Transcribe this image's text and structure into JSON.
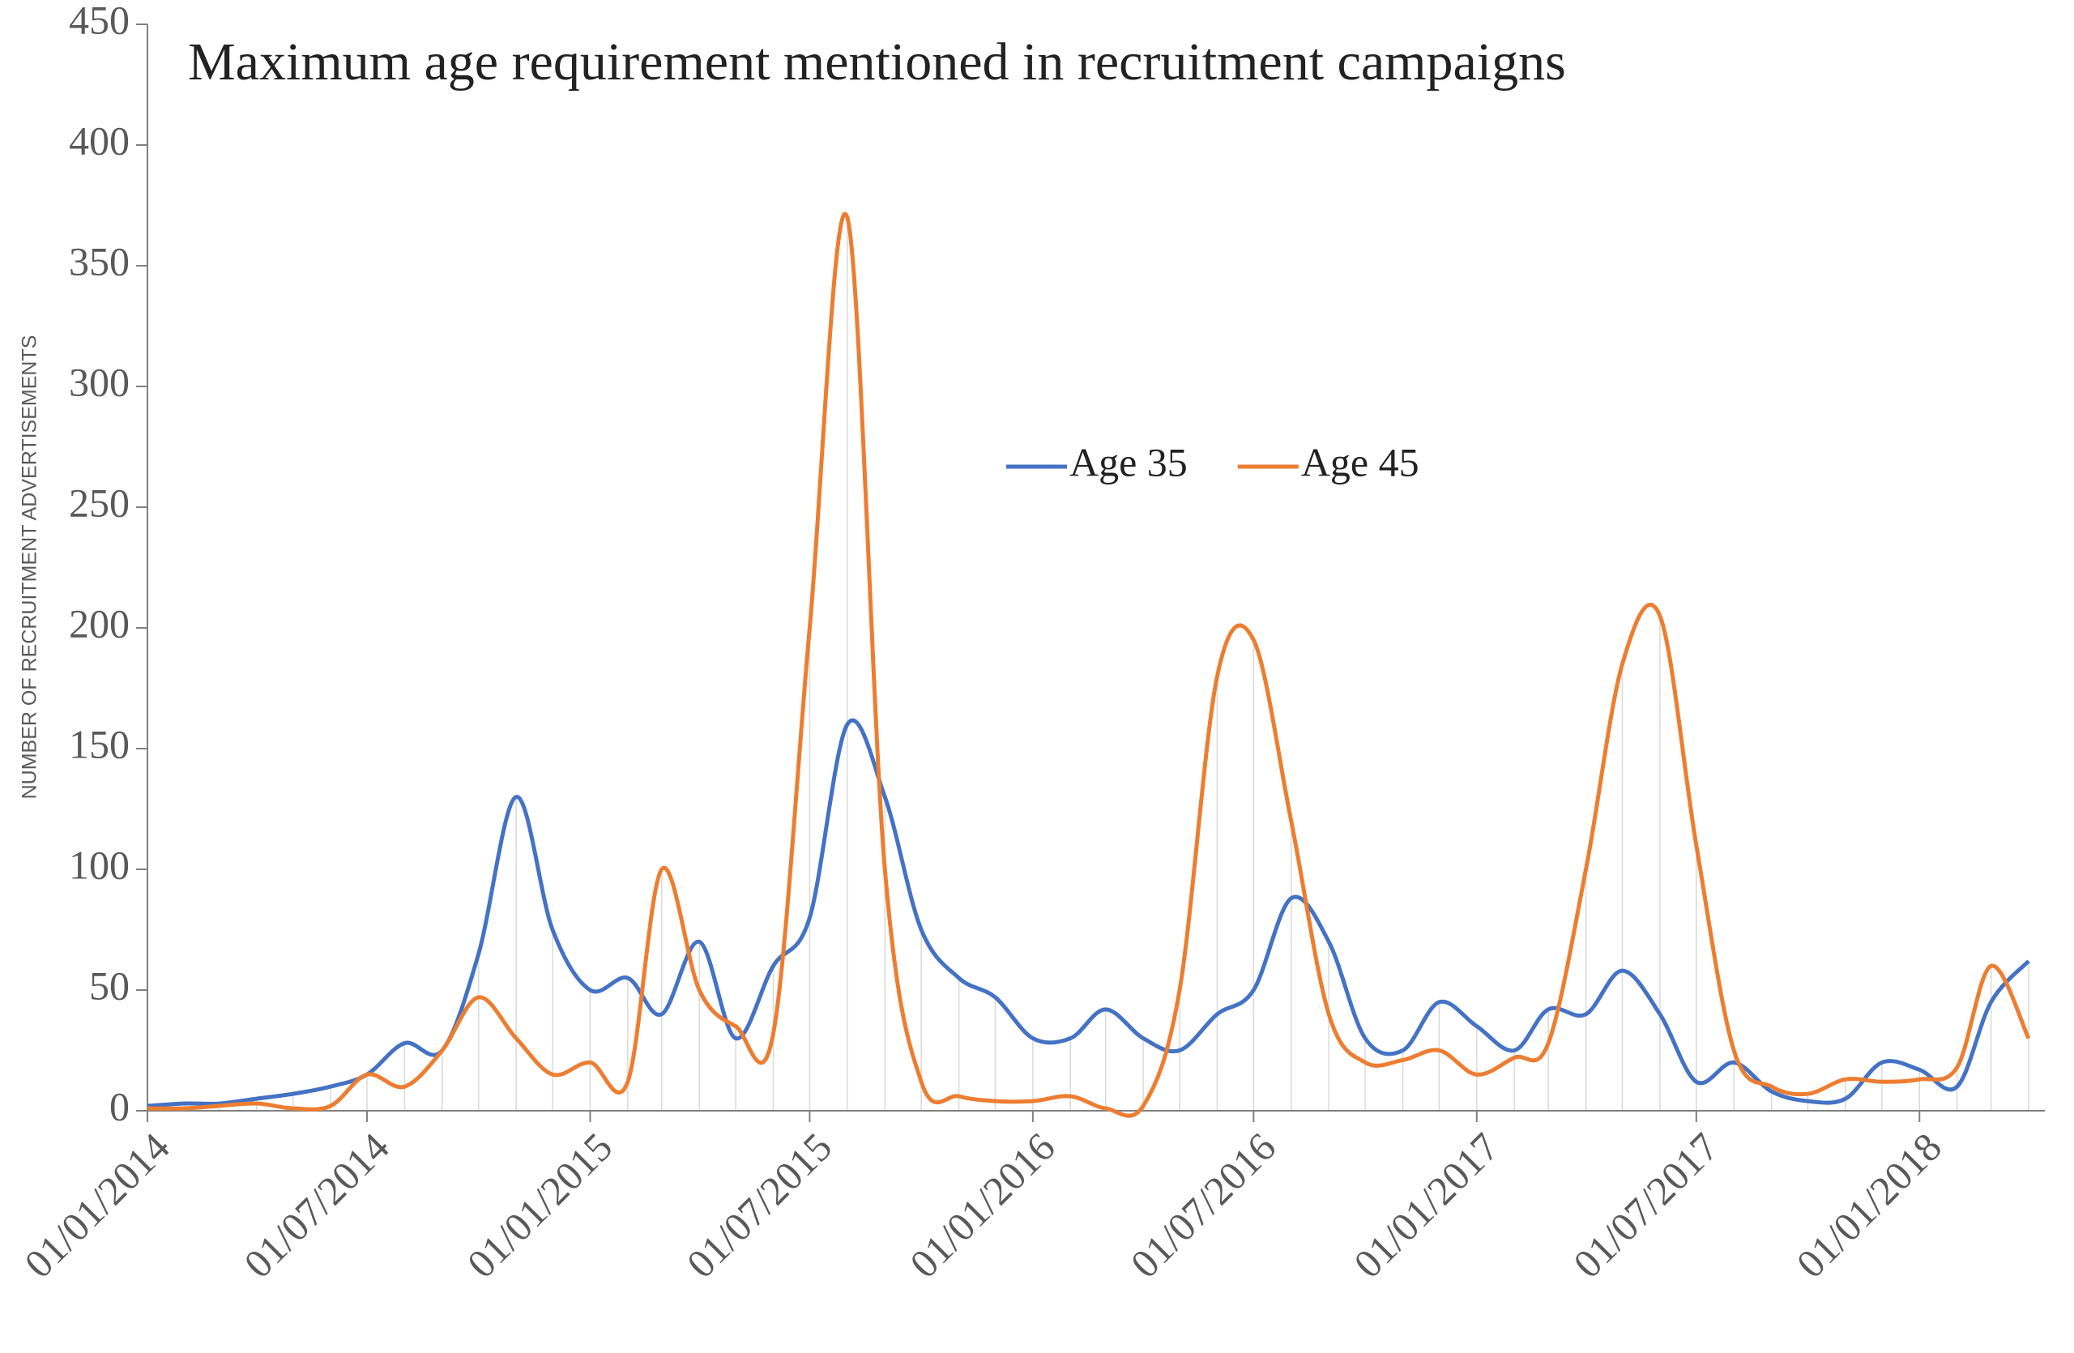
{
  "chart_data": {
    "type": "line",
    "title": "Maximum age requirement mentioned in recruitment campaigns",
    "y_label": "NUMBER OF RECRUITMENT ADVERTISEMENTS",
    "x": [
      "01/01/2014",
      "01/02/2014",
      "01/03/2014",
      "01/04/2014",
      "01/05/2014",
      "01/06/2014",
      "01/07/2014",
      "01/08/2014",
      "01/09/2014",
      "01/10/2014",
      "01/11/2014",
      "01/12/2014",
      "01/01/2015",
      "01/02/2015",
      "01/03/2015",
      "01/04/2015",
      "01/05/2015",
      "01/06/2015",
      "01/07/2015",
      "01/08/2015",
      "01/09/2015",
      "01/10/2015",
      "01/11/2015",
      "01/12/2015",
      "01/01/2016",
      "01/02/2016",
      "01/03/2016",
      "01/04/2016",
      "01/05/2016",
      "01/06/2016",
      "01/07/2016",
      "01/08/2016",
      "01/09/2016",
      "01/10/2016",
      "01/11/2016",
      "01/12/2016",
      "01/01/2017",
      "01/02/2017",
      "01/03/2017",
      "01/04/2017",
      "01/05/2017",
      "01/06/2017",
      "01/07/2017",
      "01/08/2017",
      "01/09/2017",
      "01/10/2017",
      "01/11/2017",
      "01/12/2017",
      "01/01/2018",
      "01/02/2018",
      "01/03/2018",
      "01/04/2018"
    ],
    "series": [
      {
        "name": "Age 35",
        "color": "#4472c4",
        "values": [
          2,
          3,
          3,
          5,
          7,
          10,
          15,
          28,
          25,
          65,
          130,
          75,
          50,
          55,
          40,
          70,
          30,
          60,
          80,
          160,
          130,
          75,
          55,
          47,
          30,
          30,
          42,
          30,
          25,
          40,
          50,
          88,
          70,
          30,
          25,
          45,
          35,
          25,
          42,
          40,
          58,
          40,
          12,
          20,
          8,
          4,
          5,
          20,
          17,
          10,
          45,
          62
        ]
      },
      {
        "name": "Age 45",
        "color": "#ed7d31",
        "values": [
          1,
          1,
          2,
          3,
          1,
          2,
          15,
          10,
          25,
          47,
          30,
          15,
          20,
          12,
          100,
          50,
          35,
          32,
          200,
          370,
          100,
          12,
          6,
          4,
          4,
          6,
          1,
          2,
          50,
          180,
          195,
          120,
          40,
          20,
          21,
          25,
          15,
          22,
          28,
          100,
          185,
          205,
          110,
          25,
          10,
          7,
          13,
          12,
          13,
          18,
          60,
          30
        ]
      }
    ],
    "xlim": [
      "01/01/2014",
      "01/04/2018"
    ],
    "xticks": [
      "01/01/2014",
      "01/07/2014",
      "01/01/2015",
      "01/07/2015",
      "01/01/2016",
      "01/07/2016",
      "01/01/2017",
      "01/07/2017",
      "01/01/2018"
    ],
    "ylim": [
      0,
      450
    ],
    "yticks": [
      0,
      50,
      100,
      150,
      200,
      250,
      300,
      350,
      400,
      450
    ],
    "legend": "center",
    "smooth": true,
    "drop_lines": true
  }
}
